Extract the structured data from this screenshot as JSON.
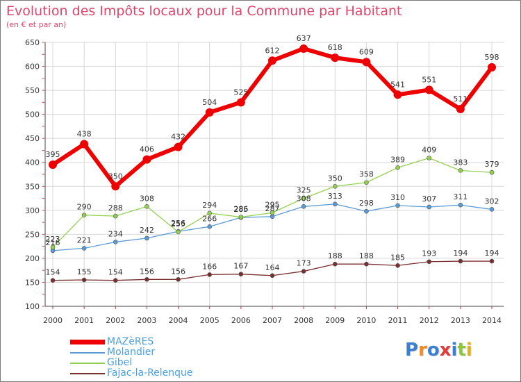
{
  "title": "Evolution des Impôts locaux pour la Commune par Habitant",
  "subtitle": "(en € et par an)",
  "logo": {
    "letters": [
      "P",
      "r",
      "o",
      "x",
      "i",
      "t",
      "i"
    ],
    "colors": [
      "#3a7fd0",
      "#f08a24",
      "#3a7fd0",
      "#e23b3b",
      "#3a7fd0",
      "#8cc63e",
      "#e0b020"
    ]
  },
  "chart_data": {
    "type": "line",
    "title": "Evolution des Impôts locaux pour la Commune par Habitant",
    "subtitle": "(en € et par an)",
    "x": [
      "2000",
      "2001",
      "2002",
      "2003",
      "2004",
      "2005",
      "2006",
      "2007",
      "2008",
      "2009",
      "2010",
      "2011",
      "2012",
      "2013",
      "2014"
    ],
    "ylim": [
      100,
      650
    ],
    "yticks": [
      100,
      150,
      200,
      250,
      300,
      350,
      400,
      450,
      500,
      550,
      600,
      650
    ],
    "grid": true,
    "legend": "bottom-left",
    "series": [
      {
        "name": "MAZèRES",
        "color": "#ee0000",
        "values": [
          395,
          438,
          350,
          406,
          432,
          504,
          525,
          612,
          637,
          618,
          609,
          541,
          551,
          511,
          598
        ]
      },
      {
        "name": "Molandier",
        "color": "#5b9bd5",
        "values": [
          216,
          221,
          234,
          242,
          256,
          266,
          285,
          287,
          308,
          313,
          298,
          310,
          307,
          311,
          302
        ]
      },
      {
        "name": "Gibel",
        "color": "#92d050",
        "values": [
          223,
          290,
          288,
          308,
          255,
          294,
          286,
          295,
          325,
          350,
          358,
          389,
          409,
          383,
          379
        ]
      },
      {
        "name": "Fajac-la-Relenque",
        "color": "#7a2f2f",
        "values": [
          154,
          155,
          154,
          156,
          156,
          166,
          167,
          164,
          173,
          188,
          188,
          185,
          193,
          194,
          194
        ]
      }
    ]
  }
}
